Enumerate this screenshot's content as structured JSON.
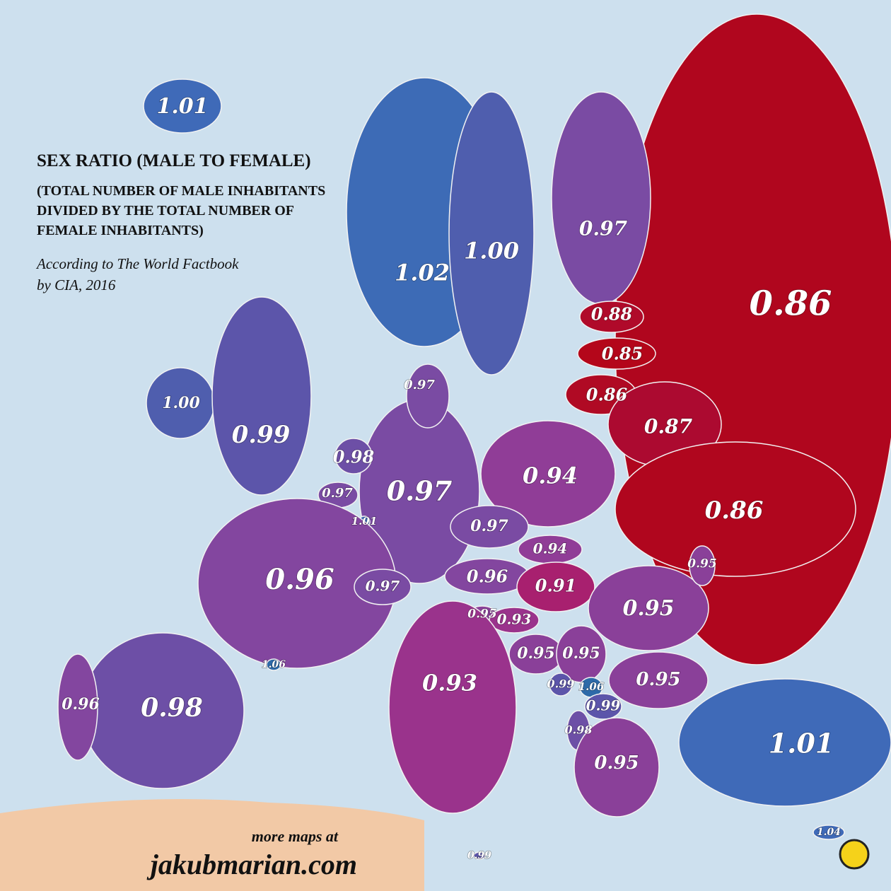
{
  "header": {
    "title": "SEX RATIO (MALE TO FEMALE)",
    "subtitle": [
      "(TOTAL NUMBER OF MALE INHABITANTS",
      "DIVIDED BY THE TOTAL NUMBER OF",
      "FEMALE INHABITANTS)"
    ],
    "source": [
      "According to The World Factbook",
      "by CIA, 2016"
    ]
  },
  "regions": [
    {
      "label": "0.86",
      "color": "#b0061e"
    },
    {
      "label": "1.01",
      "color": "#3f6ab8"
    },
    {
      "label": "1.02",
      "color": "#3d6bb6"
    },
    {
      "label": "1.00",
      "color": "#4f5eae"
    },
    {
      "label": "0.97",
      "color": "#7a4ba3"
    },
    {
      "label": "0.88",
      "color": "#b00a2a"
    },
    {
      "label": "0.85",
      "color": "#b4061a"
    },
    {
      "label": "0.86",
      "color": "#b00a24"
    },
    {
      "label": "0.87",
      "color": "#ac0a30"
    },
    {
      "label": "0.86",
      "color": "#b0061e"
    },
    {
      "label": "0.94",
      "color": "#903d97"
    },
    {
      "label": "0.97",
      "color": "#7a4ba3"
    },
    {
      "label": "0.97",
      "color": "#7a4ba3"
    },
    {
      "label": "1.00",
      "color": "#4f5eae"
    },
    {
      "label": "0.99",
      "color": "#5c55aa"
    },
    {
      "label": "0.98",
      "color": "#6d4fa6"
    },
    {
      "label": "0.97",
      "color": "#7a4ba3"
    },
    {
      "label": "1.01",
      "color": "#3f6ab8"
    },
    {
      "label": "0.96",
      "color": "#83469f"
    },
    {
      "label": "0.97",
      "color": "#7a4ba3"
    },
    {
      "label": "0.94",
      "color": "#903d97"
    },
    {
      "label": "0.96",
      "color": "#83469f"
    },
    {
      "label": "0.91",
      "color": "#a8206f"
    },
    {
      "label": "0.97",
      "color": "#7a4ba3"
    },
    {
      "label": "0.95",
      "color": "#8a4099"
    },
    {
      "label": "0.93",
      "color": "#9a338c"
    },
    {
      "label": "0.95",
      "color": "#8a4099"
    },
    {
      "label": "0.95",
      "color": "#8a4099"
    },
    {
      "label": "0.95",
      "color": "#8a4099"
    },
    {
      "label": "0.95",
      "color": "#8a4099"
    },
    {
      "label": "0.95",
      "color": "#8a4099"
    },
    {
      "label": "0.99",
      "color": "#5c55aa"
    },
    {
      "label": "1.06",
      "color": "#2e6aa8"
    },
    {
      "label": "0.99",
      "color": "#5c55aa"
    },
    {
      "label": "0.98",
      "color": "#6d4fa6"
    },
    {
      "label": "0.95",
      "color": "#8a4099"
    },
    {
      "label": "0.93",
      "color": "#9a338c"
    },
    {
      "label": "1.06",
      "color": "#2e6aa8"
    },
    {
      "label": "0.98",
      "color": "#6d4fa6"
    },
    {
      "label": "0.96",
      "color": "#83469f"
    },
    {
      "label": "1.01",
      "color": "#3f6ab8"
    },
    {
      "label": "1.04",
      "color": "#3f6ab8"
    },
    {
      "label": "0.99",
      "color": "#5c55aa"
    }
  ],
  "footer": {
    "note": "more maps at",
    "site": "jakubmarian.com"
  }
}
